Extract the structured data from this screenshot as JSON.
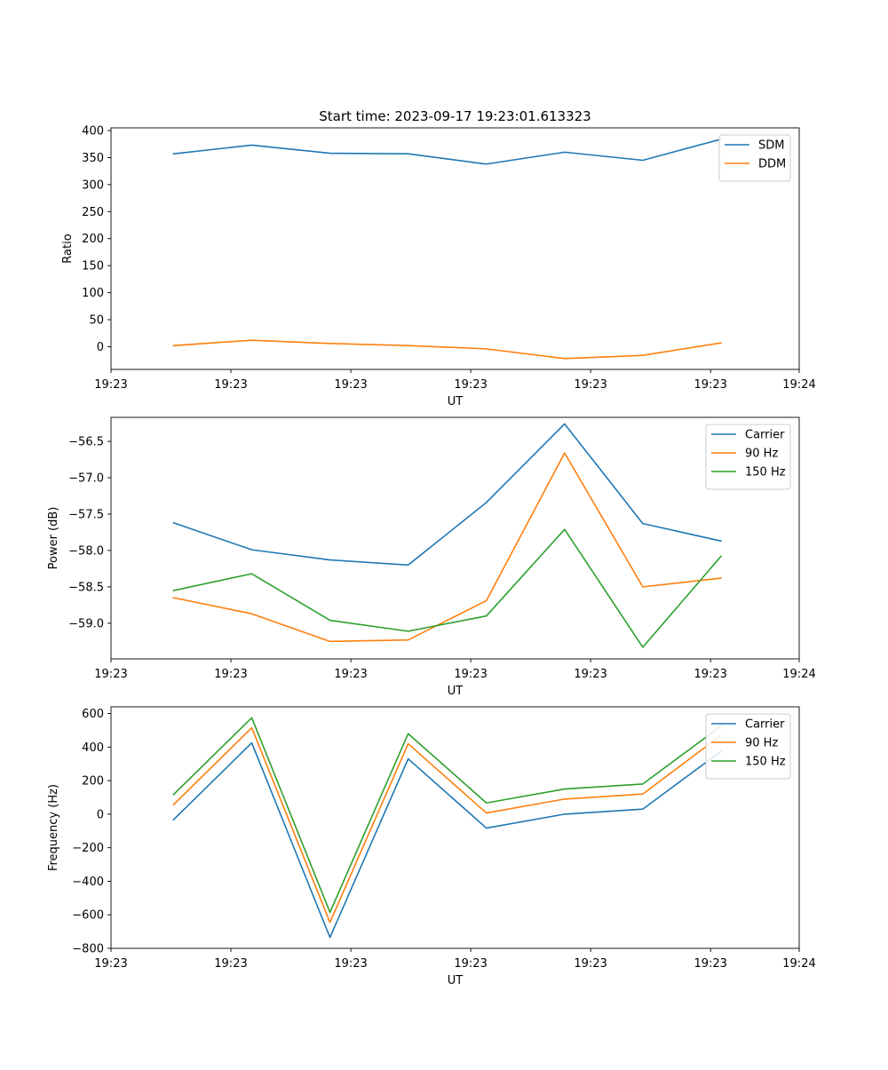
{
  "chart_data": [
    {
      "type": "line",
      "title": "Start time: 2023-09-17 19:23:01.613323",
      "xlabel": "UT",
      "ylabel": "Ratio",
      "x": [
        1,
        2,
        3,
        4,
        5,
        6,
        7,
        8
      ],
      "xlim": [
        0.2,
        9.0
      ],
      "xticks": [
        0.2,
        1.733,
        3.267,
        4.8,
        6.333,
        7.867,
        9.0
      ],
      "xtick_labels": [
        "19:23",
        "19:23",
        "19:23",
        "19:23",
        "19:23",
        "19:23",
        "19:24"
      ],
      "ylim": [
        -42,
        405
      ],
      "yticks": [
        0,
        50,
        100,
        150,
        200,
        250,
        300,
        350,
        400
      ],
      "ytick_labels": [
        "0",
        "50",
        "100",
        "150",
        "200",
        "250",
        "300",
        "350",
        "400"
      ],
      "legend": "top-right",
      "series": [
        {
          "name": "SDM",
          "color": "#1f77b4",
          "values": [
            357,
            373,
            358,
            357,
            338,
            360,
            345,
            384
          ]
        },
        {
          "name": "DDM",
          "color": "#ff7f0e",
          "values": [
            2,
            12,
            6,
            2,
            -4,
            -22,
            -16,
            7
          ]
        }
      ]
    },
    {
      "type": "line",
      "title": "",
      "xlabel": "UT",
      "ylabel": "Power (dB)",
      "x": [
        1,
        2,
        3,
        4,
        5,
        6,
        7,
        8
      ],
      "xlim": [
        0.2,
        9.0
      ],
      "xticks": [
        0.2,
        1.733,
        3.267,
        4.8,
        6.333,
        7.867,
        9.0
      ],
      "xtick_labels": [
        "19:23",
        "19:23",
        "19:23",
        "19:23",
        "19:23",
        "19:23",
        "19:24"
      ],
      "ylim": [
        -59.49,
        -56.17
      ],
      "yticks": [
        -59.0,
        -58.5,
        -58.0,
        -57.5,
        -57.0,
        -56.5
      ],
      "ytick_labels": [
        "−59.0",
        "−58.5",
        "−58.0",
        "−57.5",
        "−57.0",
        "−56.5"
      ],
      "legend": "top-right",
      "series": [
        {
          "name": "Carrier",
          "color": "#1f77b4",
          "values": [
            -57.62,
            -57.99,
            -58.13,
            -58.2,
            -57.34,
            -56.26,
            -57.63,
            -57.87
          ]
        },
        {
          "name": "90 Hz",
          "color": "#ff7f0e",
          "values": [
            -58.65,
            -58.87,
            -59.25,
            -59.23,
            -58.69,
            -56.66,
            -58.5,
            -58.38
          ]
        },
        {
          "name": "150 Hz",
          "color": "#2ca02c",
          "values": [
            -58.55,
            -58.32,
            -58.96,
            -59.11,
            -58.9,
            -57.71,
            -59.33,
            -58.08
          ]
        }
      ]
    },
    {
      "type": "line",
      "title": "",
      "xlabel": "UT",
      "ylabel": "Frequency (Hz)",
      "x": [
        1,
        2,
        3,
        4,
        5,
        6,
        7,
        8
      ],
      "xlim": [
        0.2,
        9.0
      ],
      "xticks": [
        0.2,
        1.733,
        3.267,
        4.8,
        6.333,
        7.867,
        9.0
      ],
      "xtick_labels": [
        "19:23",
        "19:23",
        "19:23",
        "19:23",
        "19:23",
        "19:23",
        "19:24"
      ],
      "ylim": [
        -800,
        640
      ],
      "yticks": [
        -800,
        -600,
        -400,
        -200,
        0,
        200,
        400,
        600
      ],
      "ytick_labels": [
        "−800",
        "−600",
        "−400",
        "−200",
        "0",
        "200",
        "400",
        "600"
      ],
      "legend": "top-right",
      "series": [
        {
          "name": "Carrier",
          "color": "#1f77b4",
          "values": [
            -33,
            425,
            -735,
            330,
            -83,
            0,
            30,
            375
          ]
        },
        {
          "name": "90 Hz",
          "color": "#ff7f0e",
          "values": [
            57,
            515,
            -645,
            420,
            7,
            90,
            120,
            470
          ]
        },
        {
          "name": "150 Hz",
          "color": "#2ca02c",
          "values": [
            117,
            575,
            -585,
            480,
            67,
            150,
            180,
            525
          ]
        }
      ]
    }
  ]
}
